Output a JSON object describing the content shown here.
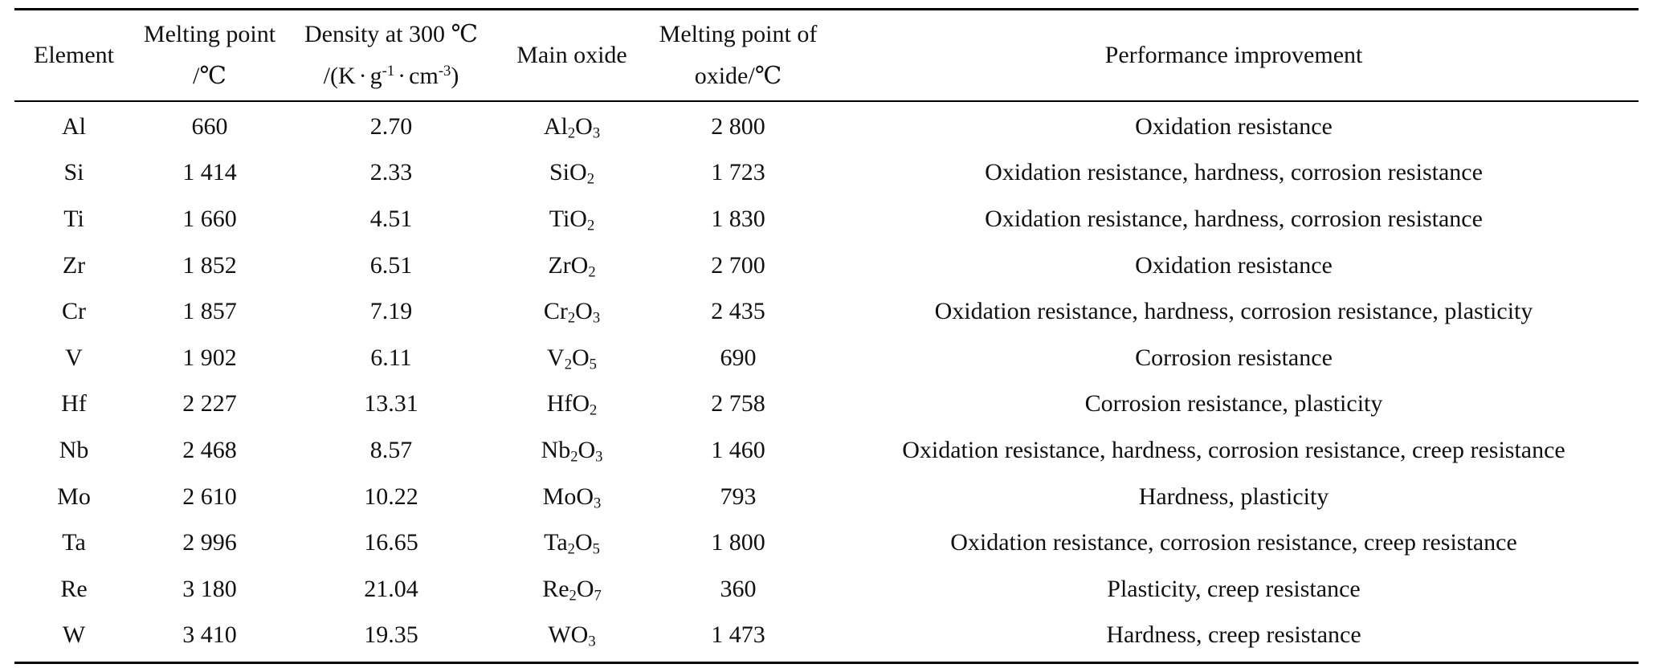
{
  "table": {
    "headers": {
      "element": "Element",
      "melting_point_line1": "Melting point",
      "melting_point_line2": "/℃",
      "density_line1": "Density at 300 ℃",
      "density_line2": {
        "open": "/(K",
        "dot1": "·",
        "g": "g",
        "g_exp": "-1",
        "dot2": "·",
        "cm": "cm",
        "cm_exp": "-3",
        "close": ")"
      },
      "main_oxide": "Main oxide",
      "oxide_mp_line1": "Melting point of",
      "oxide_mp_line2": "oxide/℃",
      "performance": "Performance improvement"
    },
    "rows": [
      {
        "element": "Al",
        "melting_point": "660",
        "density": "2.70",
        "oxide": [
          [
            "Al",
            ""
          ],
          [
            "2",
            "sub"
          ],
          [
            "O",
            ""
          ],
          [
            "3",
            "sub"
          ]
        ],
        "oxide_mp": "2 800",
        "performance": "Oxidation resistance"
      },
      {
        "element": "Si",
        "melting_point": "1 414",
        "density": "2.33",
        "oxide": [
          [
            "SiO",
            ""
          ],
          [
            "2",
            "sub"
          ]
        ],
        "oxide_mp": "1 723",
        "performance": "Oxidation resistance, hardness, corrosion resistance"
      },
      {
        "element": "Ti",
        "melting_point": "1 660",
        "density": "4.51",
        "oxide": [
          [
            "TiO",
            ""
          ],
          [
            "2",
            "sub"
          ]
        ],
        "oxide_mp": "1 830",
        "performance": "Oxidation resistance, hardness, corrosion resistance"
      },
      {
        "element": "Zr",
        "melting_point": "1 852",
        "density": "6.51",
        "oxide": [
          [
            "ZrO",
            ""
          ],
          [
            "2",
            "sub"
          ]
        ],
        "oxide_mp": "2 700",
        "performance": "Oxidation resistance"
      },
      {
        "element": "Cr",
        "melting_point": "1 857",
        "density": "7.19",
        "oxide": [
          [
            "Cr",
            ""
          ],
          [
            "2",
            "sub"
          ],
          [
            "O",
            ""
          ],
          [
            "3",
            "sub"
          ]
        ],
        "oxide_mp": "2 435",
        "performance": "Oxidation resistance, hardness, corrosion resistance, plasticity"
      },
      {
        "element": "V",
        "melting_point": "1 902",
        "density": "6.11",
        "oxide": [
          [
            "V",
            ""
          ],
          [
            "2",
            "sub"
          ],
          [
            "O",
            ""
          ],
          [
            "5",
            "sub"
          ]
        ],
        "oxide_mp": "690",
        "performance": "Corrosion resistance"
      },
      {
        "element": "Hf",
        "melting_point": "2 227",
        "density": "13.31",
        "oxide": [
          [
            "HfO",
            ""
          ],
          [
            "2",
            "sub"
          ]
        ],
        "oxide_mp": "2 758",
        "performance": "Corrosion resistance, plasticity"
      },
      {
        "element": "Nb",
        "melting_point": "2 468",
        "density": "8.57",
        "oxide": [
          [
            "Nb",
            ""
          ],
          [
            "2",
            "sub"
          ],
          [
            "O",
            ""
          ],
          [
            "3",
            "sub"
          ]
        ],
        "oxide_mp": "1 460",
        "performance": "Oxidation resistance, hardness, corrosion resistance, creep resistance"
      },
      {
        "element": "Mo",
        "melting_point": "2 610",
        "density": "10.22",
        "oxide": [
          [
            "MoO",
            ""
          ],
          [
            "3",
            "sub"
          ]
        ],
        "oxide_mp": "793",
        "performance": "Hardness, plasticity"
      },
      {
        "element": "Ta",
        "melting_point": "2 996",
        "density": "16.65",
        "oxide": [
          [
            "Ta",
            ""
          ],
          [
            "2",
            "sub"
          ],
          [
            "O",
            ""
          ],
          [
            "5",
            "sub"
          ]
        ],
        "oxide_mp": "1 800",
        "performance": "Oxidation resistance, corrosion resistance, creep resistance"
      },
      {
        "element": "Re",
        "melting_point": "3 180",
        "density": "21.04",
        "oxide": [
          [
            "Re",
            ""
          ],
          [
            "2",
            "sub"
          ],
          [
            "O",
            ""
          ],
          [
            "7",
            "sub"
          ]
        ],
        "oxide_mp": "360",
        "performance": "Plasticity, creep resistance"
      },
      {
        "element": "W",
        "melting_point": "3 410",
        "density": "19.35",
        "oxide": [
          [
            "WO",
            ""
          ],
          [
            "3",
            "sub"
          ]
        ],
        "oxide_mp": "1 473",
        "performance": "Hardness, creep resistance"
      }
    ]
  }
}
